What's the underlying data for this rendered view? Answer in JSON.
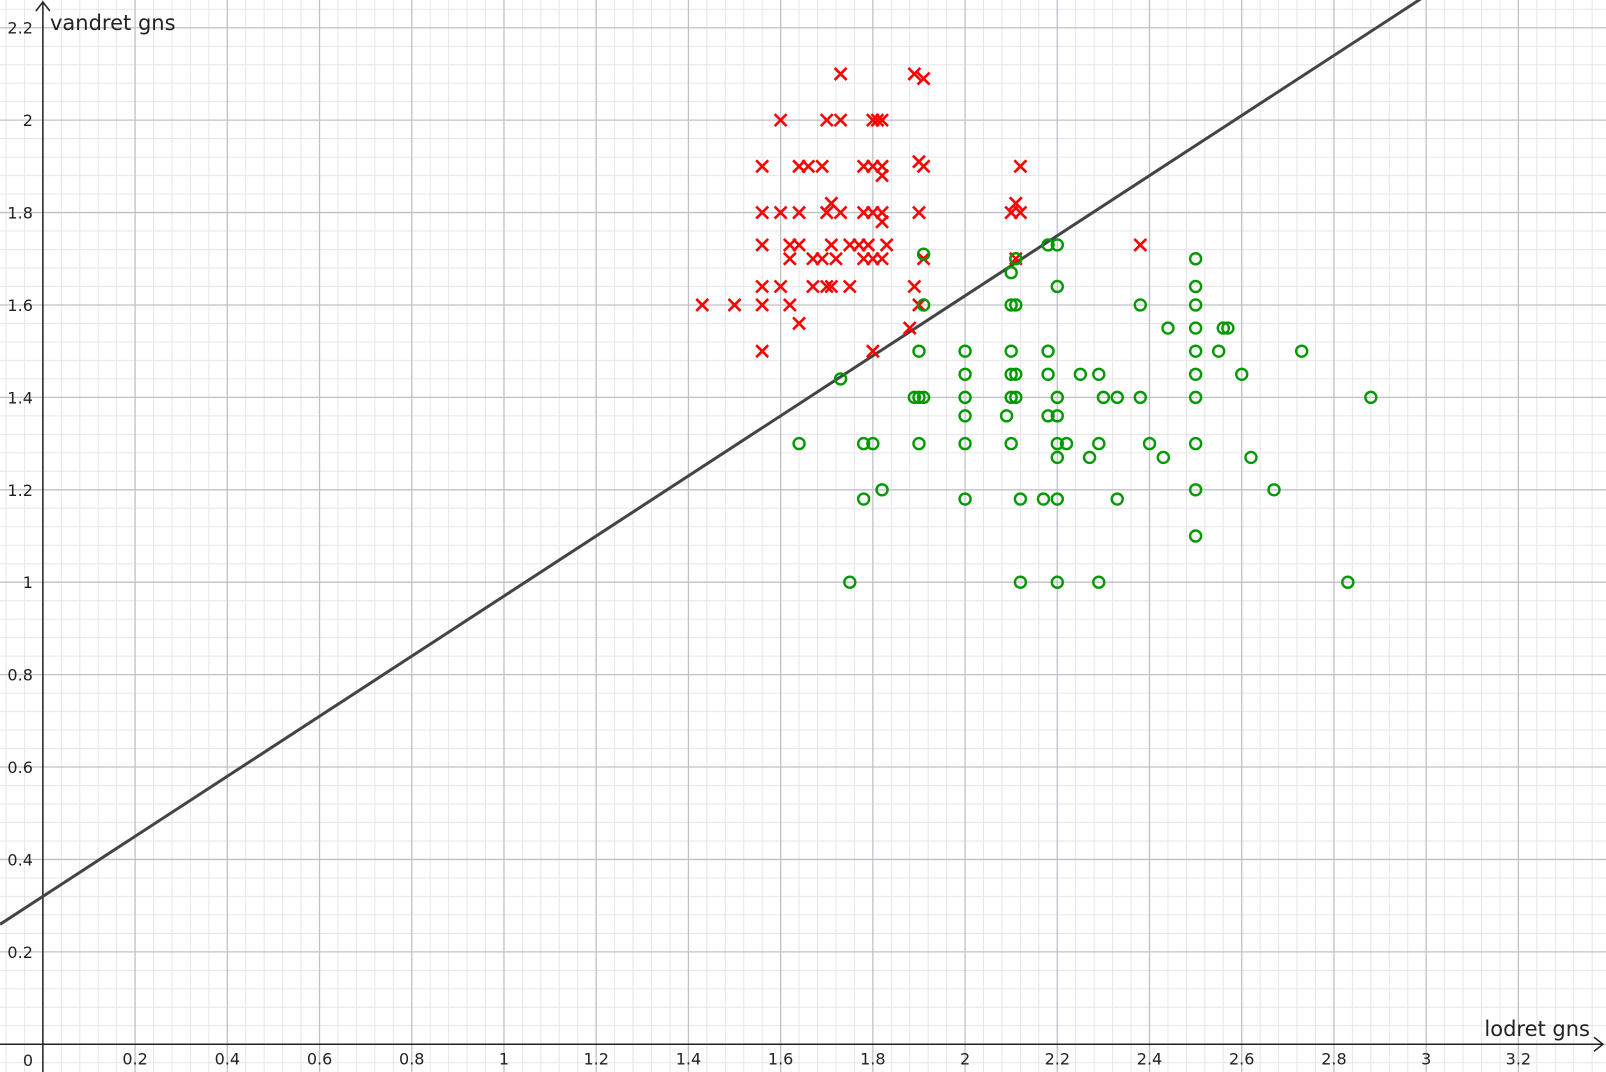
{
  "chart_data": {
    "type": "scatter",
    "xlabel": "lodret gns",
    "ylabel": "vandret gns",
    "origin_label": "0",
    "xlim": [
      -0.093,
      3.39
    ],
    "ylim": [
      -0.06,
      2.26
    ],
    "grid": true,
    "x_ticks": [
      "0.2",
      "0.4",
      "0.6",
      "0.8",
      "1",
      "1.2",
      "1.4",
      "1.6",
      "1.8",
      "2",
      "2.2",
      "2.4",
      "2.6",
      "2.8",
      "3",
      "3.2"
    ],
    "y_ticks": [
      "0.2",
      "0.4",
      "0.6",
      "0.8",
      "1",
      "1.2",
      "1.4",
      "1.6",
      "1.8",
      "2",
      "2.2"
    ],
    "colors": {
      "red_series": "#ff0000",
      "green_series": "#009900",
      "line": "#444444",
      "major_grid": "#c0c0c8",
      "minor_grid": "#e6e6ea"
    },
    "series": [
      {
        "marker": "cross",
        "color": "#ff0000",
        "points": [
          [
            1.43,
            1.6
          ],
          [
            1.5,
            1.6
          ],
          [
            1.56,
            1.9
          ],
          [
            1.56,
            1.8
          ],
          [
            1.56,
            1.73
          ],
          [
            1.56,
            1.64
          ],
          [
            1.56,
            1.6
          ],
          [
            1.56,
            1.5
          ],
          [
            1.6,
            2.0
          ],
          [
            1.6,
            1.8
          ],
          [
            1.6,
            1.64
          ],
          [
            1.62,
            1.73
          ],
          [
            1.62,
            1.7
          ],
          [
            1.62,
            1.6
          ],
          [
            1.64,
            1.9
          ],
          [
            1.64,
            1.8
          ],
          [
            1.64,
            1.73
          ],
          [
            1.64,
            1.56
          ],
          [
            1.66,
            1.9
          ],
          [
            1.67,
            1.64
          ],
          [
            1.67,
            1.7
          ],
          [
            1.69,
            1.9
          ],
          [
            1.69,
            1.7
          ],
          [
            1.7,
            1.64
          ],
          [
            1.7,
            2.0
          ],
          [
            1.7,
            1.8
          ],
          [
            1.71,
            1.64
          ],
          [
            1.71,
            1.82
          ],
          [
            1.71,
            1.73
          ],
          [
            1.72,
            1.7
          ],
          [
            1.73,
            2.0
          ],
          [
            1.73,
            2.1
          ],
          [
            1.73,
            1.8
          ],
          [
            1.75,
            1.64
          ],
          [
            1.75,
            1.73
          ],
          [
            1.77,
            1.73
          ],
          [
            1.78,
            1.9
          ],
          [
            1.78,
            1.8
          ],
          [
            1.78,
            1.7
          ],
          [
            1.79,
            1.73
          ],
          [
            1.8,
            2.0
          ],
          [
            1.8,
            1.9
          ],
          [
            1.8,
            1.8
          ],
          [
            1.8,
            1.7
          ],
          [
            1.8,
            1.5
          ],
          [
            1.81,
            2.0
          ],
          [
            1.82,
            1.9
          ],
          [
            1.82,
            1.88
          ],
          [
            1.82,
            1.8
          ],
          [
            1.82,
            1.78
          ],
          [
            1.82,
            1.7
          ],
          [
            1.82,
            2.0
          ],
          [
            1.83,
            1.73
          ],
          [
            1.88,
            1.55
          ],
          [
            1.89,
            2.1
          ],
          [
            1.89,
            1.64
          ],
          [
            1.9,
            1.91
          ],
          [
            1.9,
            1.8
          ],
          [
            1.9,
            1.6
          ],
          [
            1.91,
            2.09
          ],
          [
            1.91,
            1.9
          ],
          [
            1.91,
            1.7
          ],
          [
            2.1,
            1.8
          ],
          [
            2.11,
            1.82
          ],
          [
            2.11,
            1.7
          ],
          [
            2.12,
            1.9
          ],
          [
            2.12,
            1.8
          ],
          [
            2.38,
            1.73
          ]
        ]
      },
      {
        "marker": "circle",
        "color": "#009900",
        "points": [
          [
            1.73,
            1.44
          ],
          [
            1.64,
            1.3
          ],
          [
            1.75,
            1.0
          ],
          [
            1.78,
            1.3
          ],
          [
            1.8,
            1.3
          ],
          [
            1.78,
            1.18
          ],
          [
            1.82,
            1.2
          ],
          [
            1.9,
            1.5
          ],
          [
            1.89,
            1.4
          ],
          [
            1.9,
            1.4
          ],
          [
            1.91,
            1.4
          ],
          [
            1.9,
            1.3
          ],
          [
            1.91,
            1.71
          ],
          [
            1.91,
            1.6
          ],
          [
            2.0,
            1.5
          ],
          [
            2.0,
            1.45
          ],
          [
            2.0,
            1.4
          ],
          [
            2.0,
            1.36
          ],
          [
            2.0,
            1.3
          ],
          [
            2.0,
            1.18
          ],
          [
            2.09,
            1.36
          ],
          [
            2.1,
            1.67
          ],
          [
            2.1,
            1.6
          ],
          [
            2.11,
            1.6
          ],
          [
            2.1,
            1.5
          ],
          [
            2.1,
            1.45
          ],
          [
            2.11,
            1.45
          ],
          [
            2.1,
            1.4
          ],
          [
            2.11,
            1.4
          ],
          [
            2.1,
            1.3
          ],
          [
            2.11,
            1.7
          ],
          [
            2.12,
            1.18
          ],
          [
            2.12,
            1.0
          ],
          [
            2.18,
            1.73
          ],
          [
            2.2,
            1.73
          ],
          [
            2.18,
            1.5
          ],
          [
            2.18,
            1.45
          ],
          [
            2.18,
            1.36
          ],
          [
            2.2,
            1.36
          ],
          [
            2.17,
            1.18
          ],
          [
            2.2,
            1.64
          ],
          [
            2.2,
            1.4
          ],
          [
            2.2,
            1.3
          ],
          [
            2.2,
            1.27
          ],
          [
            2.2,
            1.18
          ],
          [
            2.2,
            1.0
          ],
          [
            2.22,
            1.3
          ],
          [
            2.25,
            1.45
          ],
          [
            2.27,
            1.27
          ],
          [
            2.29,
            1.45
          ],
          [
            2.29,
            1.3
          ],
          [
            2.29,
            1.0
          ],
          [
            2.3,
            1.4
          ],
          [
            2.33,
            1.4
          ],
          [
            2.33,
            1.18
          ],
          [
            2.38,
            1.6
          ],
          [
            2.38,
            1.4
          ],
          [
            2.4,
            1.3
          ],
          [
            2.43,
            1.27
          ],
          [
            2.44,
            1.55
          ],
          [
            2.5,
            1.7
          ],
          [
            2.5,
            1.64
          ],
          [
            2.5,
            1.6
          ],
          [
            2.5,
            1.55
          ],
          [
            2.5,
            1.5
          ],
          [
            2.5,
            1.45
          ],
          [
            2.5,
            1.4
          ],
          [
            2.5,
            1.3
          ],
          [
            2.5,
            1.2
          ],
          [
            2.5,
            1.1
          ],
          [
            2.55,
            1.5
          ],
          [
            2.56,
            1.55
          ],
          [
            2.57,
            1.55
          ],
          [
            2.6,
            1.45
          ],
          [
            2.62,
            1.27
          ],
          [
            2.67,
            1.2
          ],
          [
            2.73,
            1.5
          ],
          [
            2.83,
            1.0
          ],
          [
            2.88,
            1.4
          ]
        ]
      }
    ],
    "line": {
      "intercept": 0.32,
      "slope": 0.65
    }
  }
}
